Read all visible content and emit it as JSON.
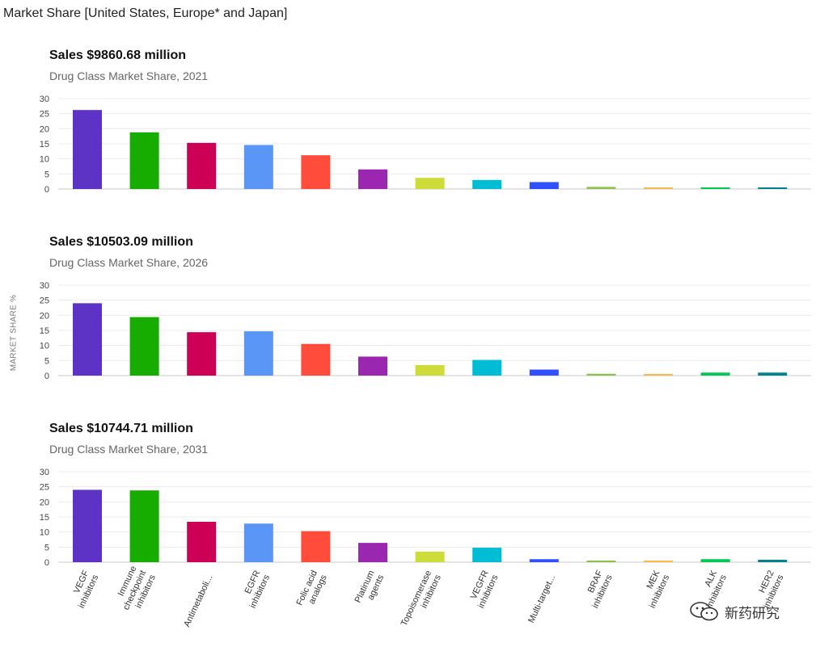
{
  "page": {
    "title": "Market Share [United States, Europe* and Japan]"
  },
  "watermark": {
    "text": "新药研究",
    "icon": "wechat-icon"
  },
  "chart_data": {
    "type": "bar",
    "ylabel": "MARKET SHARE %",
    "ylim": [
      0,
      30
    ],
    "yticks": [
      0,
      5,
      10,
      15,
      20,
      25,
      30
    ],
    "grid": true,
    "categories": [
      [
        "VEGF",
        "inhibitors"
      ],
      [
        "Immune",
        "checkpoint",
        "inhibitors"
      ],
      [
        "Antimetaboli..."
      ],
      [
        "EGFR",
        "inhibitors"
      ],
      [
        "Folic acid",
        "analogs"
      ],
      [
        "Platinum",
        "agents"
      ],
      [
        "Topoisomerase",
        "inhibitors"
      ],
      [
        "VEGFR",
        "inhibitors"
      ],
      [
        "Multi-target..."
      ],
      [
        "BRAF",
        "inhibitors"
      ],
      [
        "MEK",
        "inhibitors"
      ],
      [
        "ALK",
        "inhibitors"
      ],
      [
        "HER2",
        "inhibitors"
      ]
    ],
    "colors": [
      "#5c33c4",
      "#17ad00",
      "#cc0055",
      "#5a96f5",
      "#ff4c3b",
      "#9b27b0",
      "#cddc39",
      "#00bcd4",
      "#304ffe",
      "#8bc34a",
      "#ffb74d",
      "#00c853",
      "#00838f"
    ],
    "panels": [
      {
        "title": "Sales $9860.68 million",
        "subtitle": "Drug Class Market Share, 2021",
        "values": [
          26.2,
          18.8,
          15.3,
          14.6,
          11.2,
          6.5,
          3.7,
          3.0,
          2.3,
          0.7,
          0.3,
          0.4,
          0.4
        ]
      },
      {
        "title": "Sales $10503.09 million",
        "subtitle": "Drug Class Market Share, 2026",
        "values": [
          24.0,
          19.4,
          14.4,
          14.7,
          10.5,
          6.3,
          3.5,
          5.2,
          2.0,
          0.6,
          0.3,
          1.0,
          1.0
        ]
      },
      {
        "title": "Sales $10744.71 million",
        "subtitle": "Drug Class Market Share, 2031",
        "values": [
          24.0,
          23.8,
          13.4,
          12.8,
          10.3,
          6.4,
          3.5,
          4.8,
          1.0,
          0.5,
          0.3,
          1.0,
          0.8
        ]
      }
    ]
  }
}
